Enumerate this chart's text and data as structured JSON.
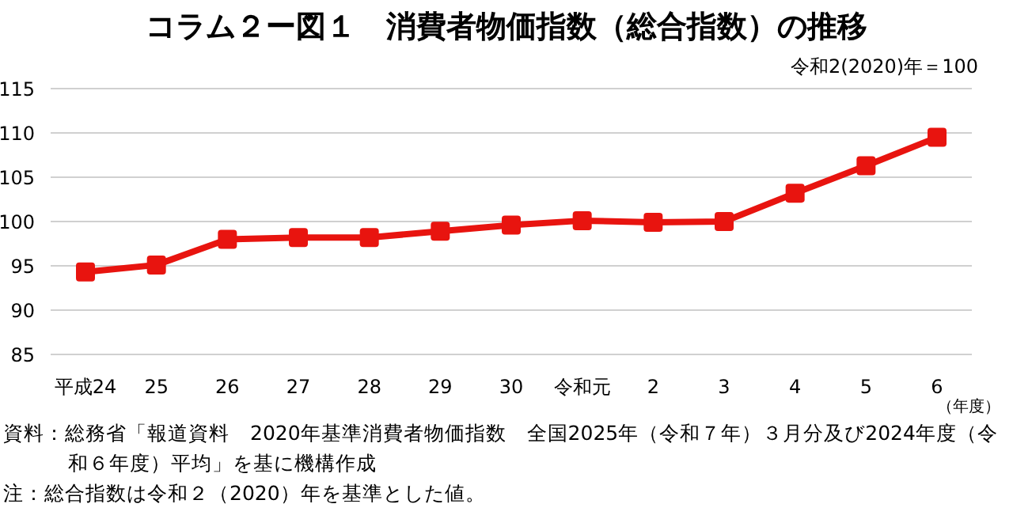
{
  "chart_data": {
    "type": "line",
    "title": "コラム２ー図１　消費者物価指数（総合指数）の推移",
    "xlabel": "（年度）",
    "categories": [
      "平成24",
      "25",
      "26",
      "27",
      "28",
      "29",
      "30",
      "令和元",
      "2",
      "3",
      "4",
      "5",
      "6"
    ],
    "series": [
      {
        "color": "#e8140f",
        "values": [
          94.3,
          95.1,
          98.0,
          98.2,
          98.2,
          98.9,
          99.6,
          100.1,
          99.9,
          100.0,
          103.2,
          106.3,
          109.5
        ]
      }
    ],
    "ylim": [
      85,
      115
    ],
    "yticks": [
      85,
      90,
      95,
      100,
      105,
      110,
      115
    ],
    "grid": "y",
    "marker": "square",
    "line_style": "solid",
    "legend": false,
    "annotations": [
      "令和2(2020)年＝100",
      "資料：総務省「報道資料　2020年基準消費者物価指数　全国2025年（令和７年）３月分及び2024年度（令和６年度）平均」を基に機構作成",
      "注：総合指数は令和２（2020）年を基準とした値。"
    ]
  }
}
